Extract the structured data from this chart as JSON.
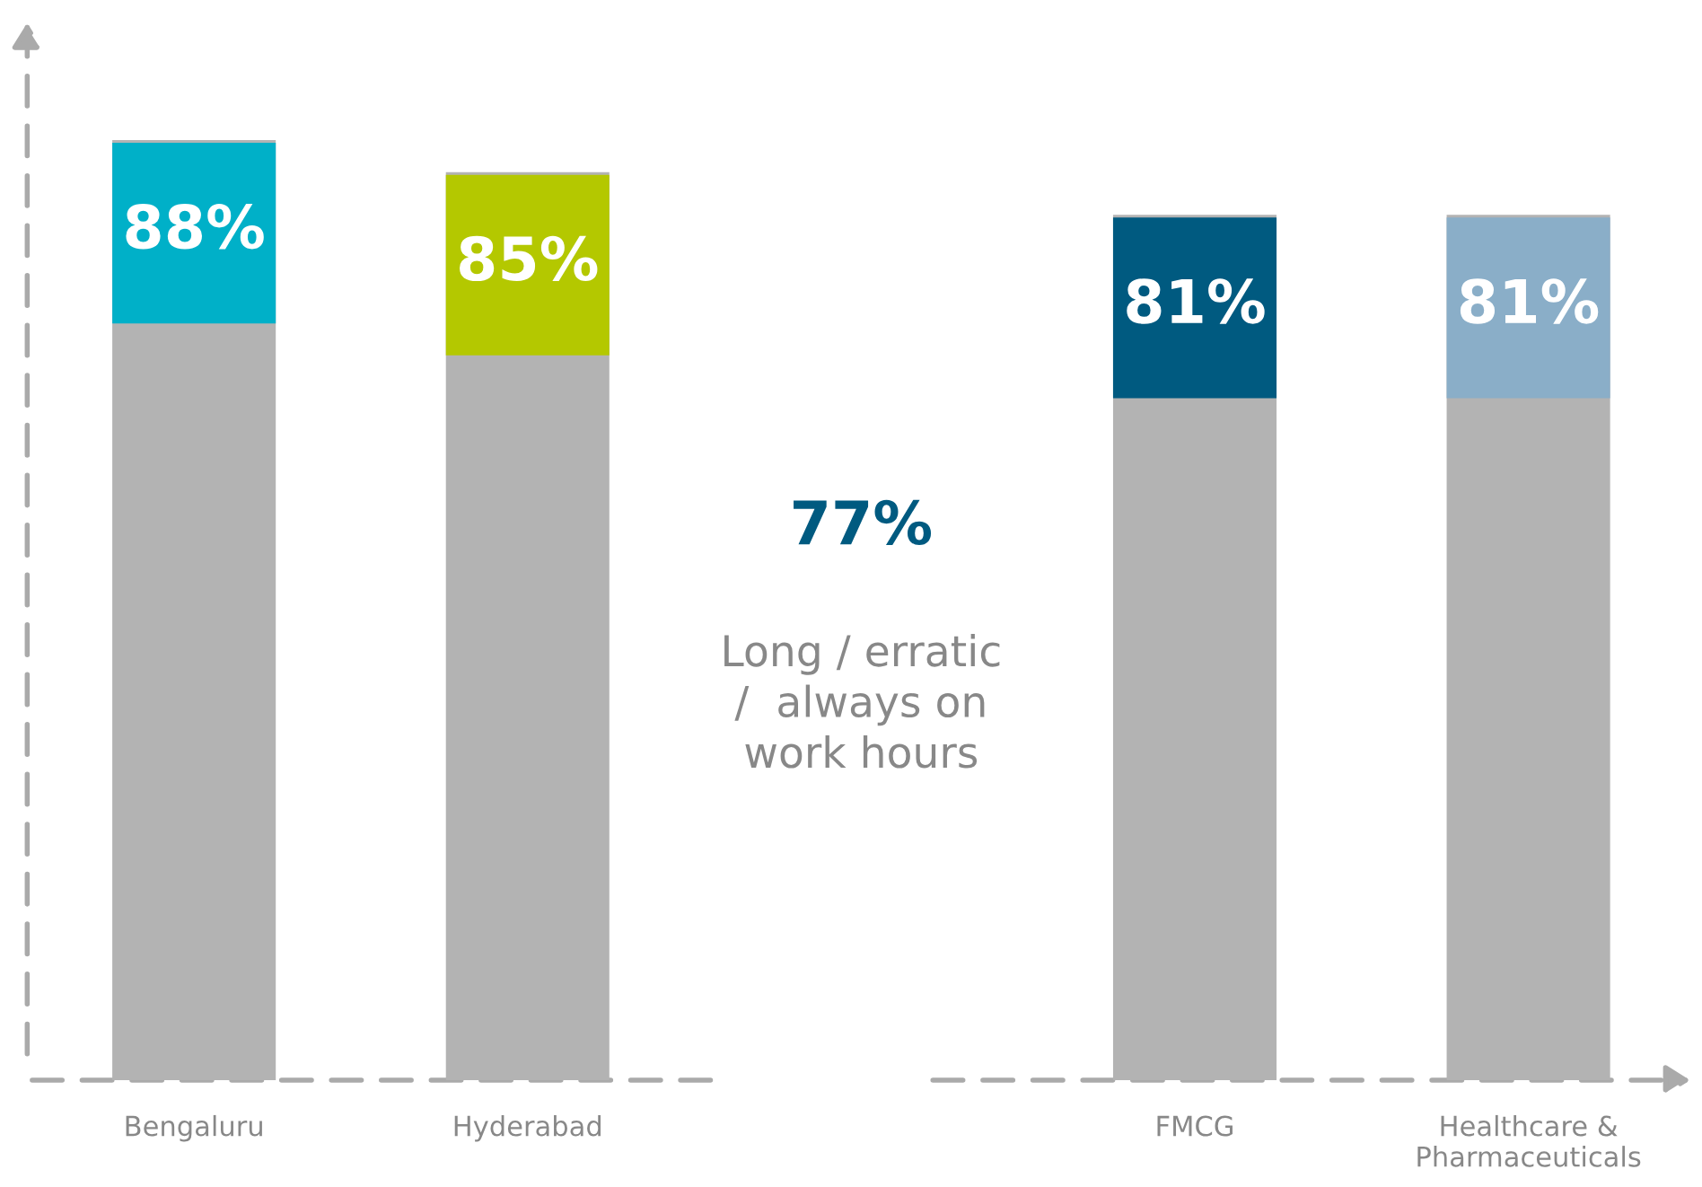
{
  "chart_data": {
    "type": "bar",
    "categories": [
      "Bengaluru",
      "Hyderabad",
      null,
      "FMCG",
      "Healthcare &\nPharmaceuticals"
    ],
    "series": [
      {
        "color": "#b3b3b3",
        "values": [
          88,
          85,
          null,
          81,
          81
        ],
        "value_labels": [
          "88%",
          "85%",
          null,
          "81%",
          "81%"
        ]
      }
    ],
    "data_labels": true,
    "colors": [
      "#00b0c8",
      "#b4c800",
      "#b3b3b3",
      "#005a80",
      "#8aaec8"
    ],
    "annotations": [
      "77%",
      "Long / erratic\n/  always on\nwork hours"
    ],
    "grid": false,
    "legend": false
  }
}
